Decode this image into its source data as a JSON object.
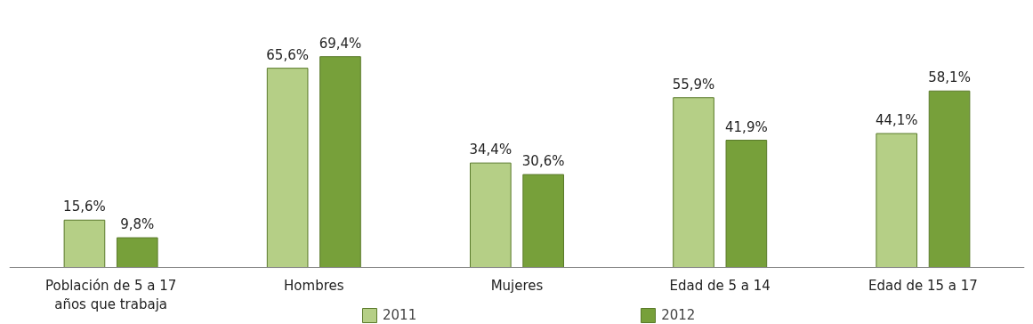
{
  "chart_data": {
    "type": "bar",
    "categories": [
      "Población de 5 a 17\naños que trabaja",
      "Hombres",
      "Mujeres",
      "Edad de 5 a 14",
      "Edad de 15 a 17"
    ],
    "series": [
      {
        "name": "2011",
        "color": "#b5cf86",
        "values": [
          15.6,
          65.6,
          34.4,
          55.9,
          44.1
        ],
        "value_labels": [
          "15,6%",
          "65,6%",
          "34,4%",
          "55,9%",
          "44,1%"
        ]
      },
      {
        "name": "2012",
        "color": "#77a03a",
        "values": [
          9.8,
          69.4,
          30.6,
          41.9,
          58.1
        ],
        "value_labels": [
          "9,8%",
          "69,4%",
          "30,6%",
          "41,9%",
          "58,1%"
        ]
      }
    ],
    "legend": "bottom"
  }
}
